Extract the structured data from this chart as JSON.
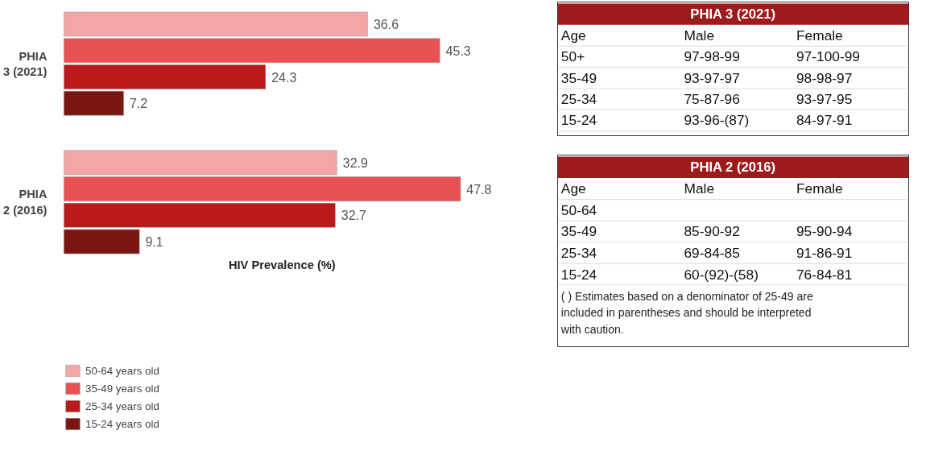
{
  "chart_data": [
    {
      "type": "bar",
      "orientation": "horizontal",
      "xlabel": "HIV Prevalence (%)",
      "categories": [
        "PHIA 3 (2021)",
        "PHIA 2 (2016)"
      ],
      "data_labels": true,
      "legend": "bottom left",
      "series": [
        {
          "name": "50-64 years old",
          "color": "#f4a5a5",
          "values": [
            36.6,
            32.9
          ]
        },
        {
          "name": "35-49 years old",
          "color": "#e65252",
          "values": [
            45.3,
            47.8
          ]
        },
        {
          "name": "25-34 years old",
          "color": "#ba1a1a",
          "values": [
            24.3,
            32.7
          ]
        },
        {
          "name": "15-24 years old",
          "color": "#7a1512",
          "values": [
            7.2,
            9.1
          ]
        }
      ]
    },
    {
      "type": "other",
      "title": "PHIA 3 (2021)",
      "annotations": [
        "Age",
        "Male",
        "Female",
        "50+",
        "97-98-99",
        "97-100-99",
        "35-49",
        "93-97-97",
        "98-98-97",
        "25-34",
        "75-87-96",
        "93-97-95",
        "15-24",
        "93-96-(87)",
        "84-97-91"
      ]
    },
    {
      "type": "other",
      "title": "PHIA 2 (2016)",
      "annotations": [
        "Age",
        "Male",
        "Female",
        "50-64",
        null,
        null,
        "35-49",
        "85-90-92",
        "95-90-94",
        "25-34",
        "69-84-85",
        "91-86-91",
        "15-24",
        "60-(92)-(58)",
        "76-84-81",
        "( ) Estimates based on a denominator of 25-49 are included in parentheses and should be interpreted with caution."
      ]
    }
  ]
}
